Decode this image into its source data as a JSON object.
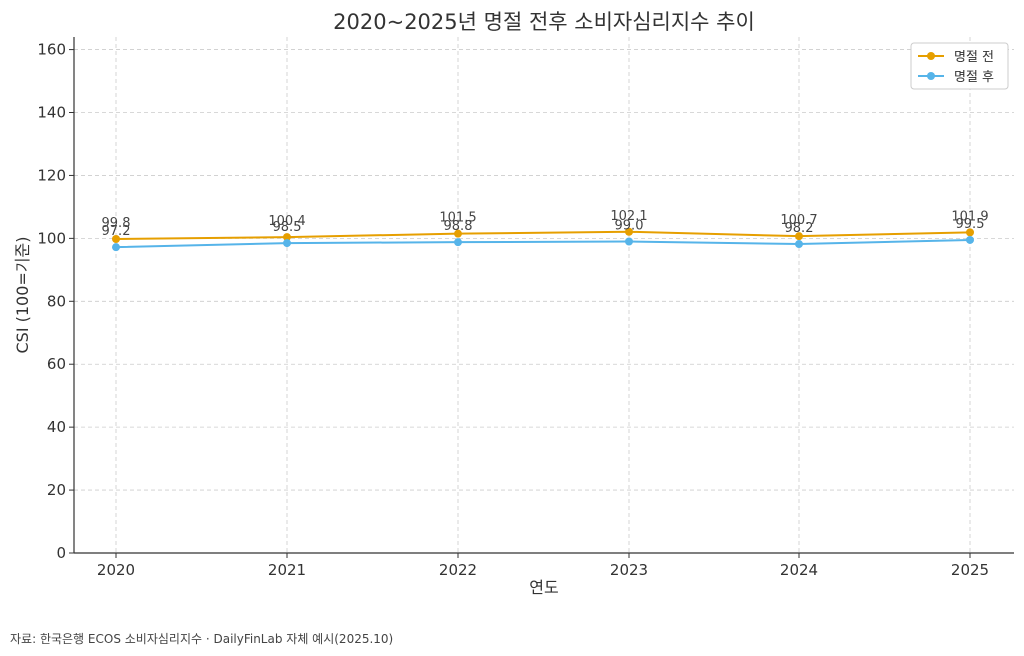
{
  "chart_data": {
    "type": "line",
    "title": "2020~2025년 명절 전후 소비자심리지수 추이",
    "xlabel": "연도",
    "ylabel": "CSI (100=기준)",
    "categories": [
      "2020",
      "2021",
      "2022",
      "2023",
      "2024",
      "2025"
    ],
    "series": [
      {
        "name": "명절 전",
        "color": "#E69F00",
        "values": [
          99.8,
          100.4,
          101.5,
          102.1,
          100.7,
          101.9
        ],
        "labels": [
          "99.8",
          "100.4",
          "101.5",
          "102.1",
          "100.7",
          "101.9"
        ]
      },
      {
        "name": "명절 후",
        "color": "#56B4E9",
        "values": [
          97.2,
          98.5,
          98.8,
          99.0,
          98.2,
          99.5
        ],
        "labels": [
          "97.2",
          "98.5",
          "98.8",
          "99.0",
          "98.2",
          "99.5"
        ]
      }
    ],
    "ylim": [
      0,
      164
    ],
    "yticks": [
      "0",
      "20",
      "40",
      "60",
      "80",
      "100",
      "120",
      "140",
      "160"
    ],
    "grid": true,
    "legend": "top-right"
  },
  "footer": {
    "source": "자료: 한국은행 ECOS 소비자심리지수 · DailyFinLab 자체 예시(2025.10)"
  }
}
